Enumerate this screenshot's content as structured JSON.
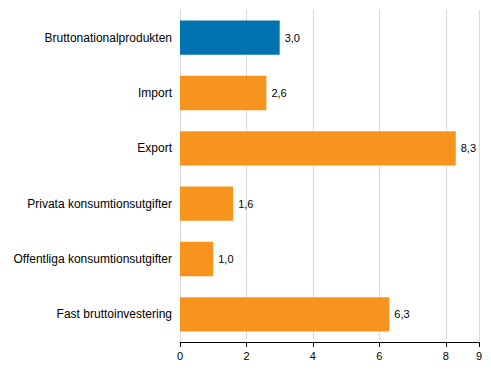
{
  "chart_data": {
    "type": "bar",
    "orientation": "horizontal",
    "categories": [
      "Bruttonationalprodukten",
      "Import",
      "Export",
      "Privata konsumtionsutgifter",
      "Offentliga konsumtionsutgifter",
      "Fast bruttoinvestering"
    ],
    "values": [
      3.0,
      2.6,
      8.3,
      1.6,
      1.0,
      6.3
    ],
    "value_labels": [
      "3,0",
      "2,6",
      "8,3",
      "1,6",
      "1,0",
      "6,3"
    ],
    "colors": [
      "#0073b0",
      "#f7941d",
      "#f7941d",
      "#f7941d",
      "#f7941d",
      "#f7941d"
    ],
    "xlim": [
      0,
      9
    ],
    "xticks": [
      0,
      2,
      4,
      6,
      8
    ],
    "grid": true,
    "data_labels": true
  }
}
